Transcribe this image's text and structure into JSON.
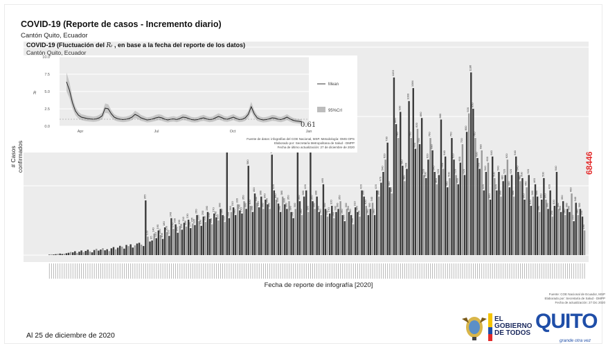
{
  "title": "COVID-19 (Reporte de casos - Incremento diario)",
  "subtitle": "Cantón Quito, Ecuador",
  "inset": {
    "title_pre": "COVID-19 (Fluctuación del ",
    "title_sym": "Rₜ",
    "title_post": " , en base a la fecha del reporte de los datos)",
    "subtitle": "Cantón Quito, Ecuador",
    "legend_mean": "Mean",
    "legend_ci": "95%CrI",
    "current_value": "0.61",
    "source": [
      "Fuente de datos: infografías del COE Nacional, MSP. Metodología: OMS-OPS",
      "Elaborado por: Secretaría Metropolitana de Salud - DMPP",
      "Fecha de último actualización: 27 de diciembre de 2020"
    ]
  },
  "total_cases": "68446",
  "y_axis_label": "# Casos confirmados",
  "x_axis_label": "Fecha de reporte de infografía [2020]",
  "date_note": "Al 25 de diciembre de 2020",
  "source_main": [
    "Fuente: COE Nacional de Ecuador, MSP",
    "Elaborado por: Secretaría de Salud - DMPP",
    "Fecha de actualización: 27 Dic 2020"
  ],
  "logos": {
    "gobierno_line1": "EL",
    "gobierno_line2": "GOBIERNO",
    "gobierno_line3": "DE TODOS",
    "quito": "QUITO",
    "quito_tagline": "grande otra vez"
  },
  "colors": {
    "total": "#e32b2b",
    "bar_dark": "#3a3a3a",
    "bar_light": "#9a9a9a",
    "panel": "#ececec",
    "ci": "#bdbdbd"
  },
  "chart_data": [
    {
      "type": "bar",
      "title": "COVID-19 (Reporte de casos - Incremento diario)",
      "xlabel": "Fecha de reporte de infografía [2020]",
      "ylabel": "# Casos confirmados",
      "ylim": [
        0,
        1350
      ],
      "grid": true,
      "values": [
        3,
        5,
        4,
        6,
        8,
        10,
        7,
        9,
        12,
        15,
        20,
        18,
        25,
        14,
        22,
        30,
        19,
        27,
        35,
        24,
        18,
        33,
        41,
        29,
        36,
        45,
        31,
        38,
        26,
        44,
        52,
        37,
        48,
        60,
        55,
        42,
        66,
        58,
        70,
        49,
        63,
        75,
        80,
        68,
        59,
        355,
        120,
        88,
        95,
        140,
        110,
        160,
        130,
        105,
        180,
        150,
        125,
        240,
        170,
        200,
        145,
        190,
        165,
        210,
        185,
        230,
        175,
        205,
        195,
        260,
        220,
        190,
        250,
        215,
        280,
        235,
        200,
        270,
        245,
        225,
        300,
        260,
        215,
        690,
        240,
        280,
        310,
        260,
        330,
        290,
        270,
        350,
        300,
        580,
        320,
        280,
        400,
        340,
        310,
        380,
        300,
        360,
        330,
        300,
        652,
        420,
        360,
        335,
        280,
        380,
        330,
        300,
        350,
        280,
        240,
        300,
        910,
        350,
        260,
        380,
        420,
        280,
        740,
        350,
        300,
        380,
        280,
        260,
        460,
        300,
        250,
        270,
        320,
        240,
        280,
        300,
        350,
        260,
        220,
        300,
        280,
        260,
        200,
        310,
        280,
        250,
        420,
        380,
        320,
        260,
        300,
        340,
        260,
        420,
        380,
        470,
        540,
        620,
        730,
        440,
        400,
        1153,
        850,
        760,
        930,
        580,
        480,
        560,
        1000,
        760,
        1084,
        690,
        820,
        720,
        890,
        520,
        500,
        620,
        760,
        680,
        540,
        460,
        520,
        880,
        560,
        640,
        440,
        500,
        760,
        620,
        520,
        460,
        600,
        720,
        520,
        800,
        920,
        1186,
        950,
        760,
        630,
        560,
        680,
        420,
        540,
        600,
        360,
        640,
        500,
        420,
        540,
        380,
        480,
        520,
        620,
        440,
        520,
        380,
        640,
        540,
        480,
        500,
        360,
        440,
        520,
        320,
        380,
        460,
        380,
        280,
        360,
        500,
        360,
        300,
        420,
        250,
        320,
        540,
        300,
        280,
        350,
        260,
        300,
        280,
        400,
        220,
        340,
        260,
        300,
        250,
        160
      ]
    },
    {
      "type": "line",
      "title": "COVID-19 (Fluctuación del Rₜ , en base a la fecha del reporte de los datos)",
      "ylabel": "R",
      "ylim": [
        0,
        10
      ],
      "xticks": [
        "Apr",
        "Jul",
        "Oct",
        "Jan"
      ],
      "yticks": [
        "0.0",
        "2.5",
        "5.0",
        "7.5",
        "10.0"
      ],
      "legend": [
        "Mean",
        "95%CrI"
      ],
      "legend_position": "right",
      "series": [
        {
          "name": "Mean",
          "values": [
            6.4,
            5.2,
            3.4,
            2.2,
            1.6,
            1.3,
            1.2,
            1.1,
            1.05,
            1.0,
            1.05,
            1.2,
            1.5,
            2.6,
            2.5,
            1.8,
            1.3,
            1.1,
            1.0,
            0.95,
            1.0,
            1.1,
            1.3,
            1.7,
            1.5,
            1.2,
            1.05,
            0.9,
            0.95,
            1.05,
            1.2,
            1.3,
            1.2,
            1.0,
            0.9,
            1.0,
            1.05,
            0.95,
            1.1,
            1.3,
            1.25,
            1.1,
            0.95,
            0.9,
            0.95,
            1.1,
            1.2,
            1.05,
            0.95,
            1.0,
            1.2,
            1.4,
            1.25,
            1.05,
            1.0,
            1.15,
            1.3,
            1.1,
            0.95,
            1.0,
            1.2,
            1.7,
            2.8,
            1.8,
            1.2,
            1.0,
            0.9,
            0.95,
            1.05,
            1.2,
            1.15,
            1.0,
            0.95,
            1.1,
            1.3,
            1.05,
            0.85,
            0.75,
            0.7,
            0.61
          ]
        }
      ]
    }
  ]
}
